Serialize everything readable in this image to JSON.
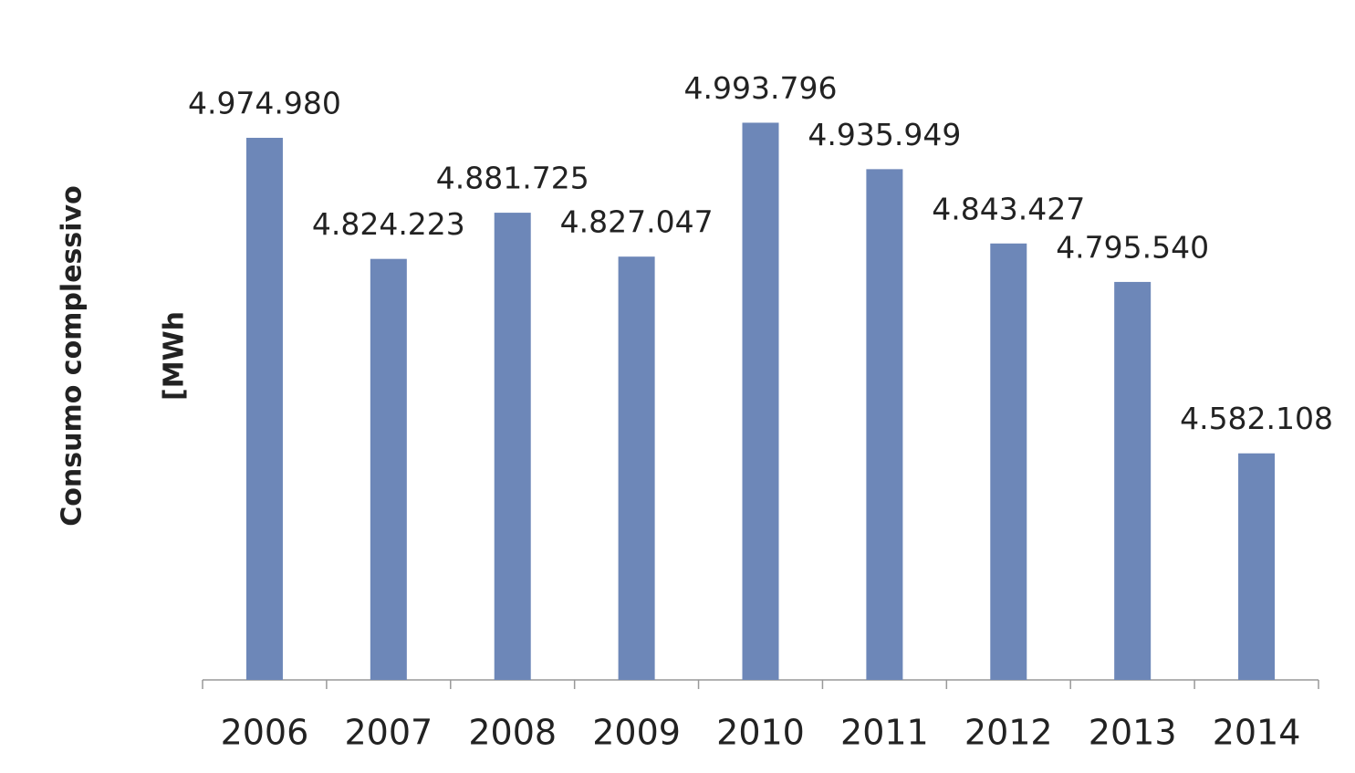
{
  "chart_data": {
    "type": "bar",
    "y_label_lines": [
      "Consumo complessivo",
      "[MWh"
    ],
    "categories": [
      "2006",
      "2007",
      "2008",
      "2009",
      "2010",
      "2011",
      "2012",
      "2013",
      "2014"
    ],
    "values": [
      4974980,
      4824223,
      4881725,
      4827047,
      4993796,
      4935949,
      4843427,
      4795540,
      4582108
    ],
    "value_labels": [
      "4.974.980",
      "4.824.223",
      "4.881.725",
      "4.827.047",
      "4.993.796",
      "4.935.949",
      "4.843.427",
      "4.795.540",
      "4.582.108"
    ],
    "color": "#6d87b8",
    "ylim": [
      4300000,
      5100000
    ]
  }
}
